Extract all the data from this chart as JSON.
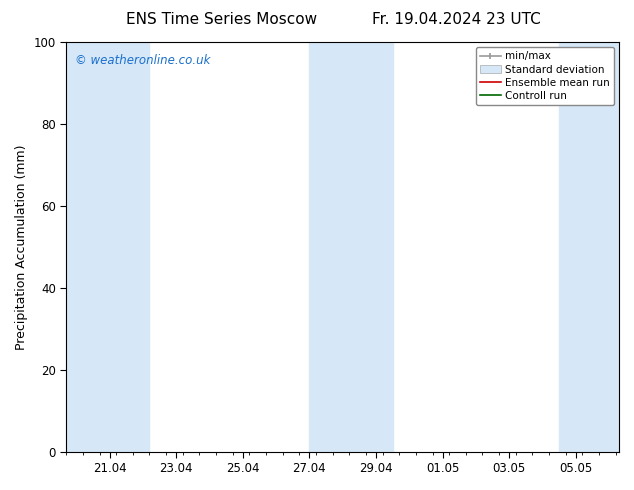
{
  "title_left": "ENS Time Series Moscow",
  "title_right": "Fr. 19.04.2024 23 UTC",
  "ylabel": "Precipitation Accumulation (mm)",
  "watermark": "© weatheronline.co.uk",
  "watermark_color": "#1a6fcc",
  "ylim": [
    0,
    100
  ],
  "yticks": [
    0,
    20,
    40,
    60,
    80,
    100
  ],
  "background_color": "#ffffff",
  "plot_bg_color": "#ffffff",
  "shaded_color": "#d6e8f7",
  "x_labels": [
    "21.04",
    "23.04",
    "25.04",
    "27.04",
    "29.04",
    "01.05",
    "03.05",
    "05.05"
  ],
  "legend_labels": [
    "min/max",
    "Standard deviation",
    "Ensemble mean run",
    "Controll run"
  ],
  "legend_colors_line": [
    "#999999",
    "#aabbcc",
    "#dd0000",
    "#006600"
  ],
  "title_fontsize": 11,
  "label_fontsize": 9,
  "tick_fontsize": 8.5
}
